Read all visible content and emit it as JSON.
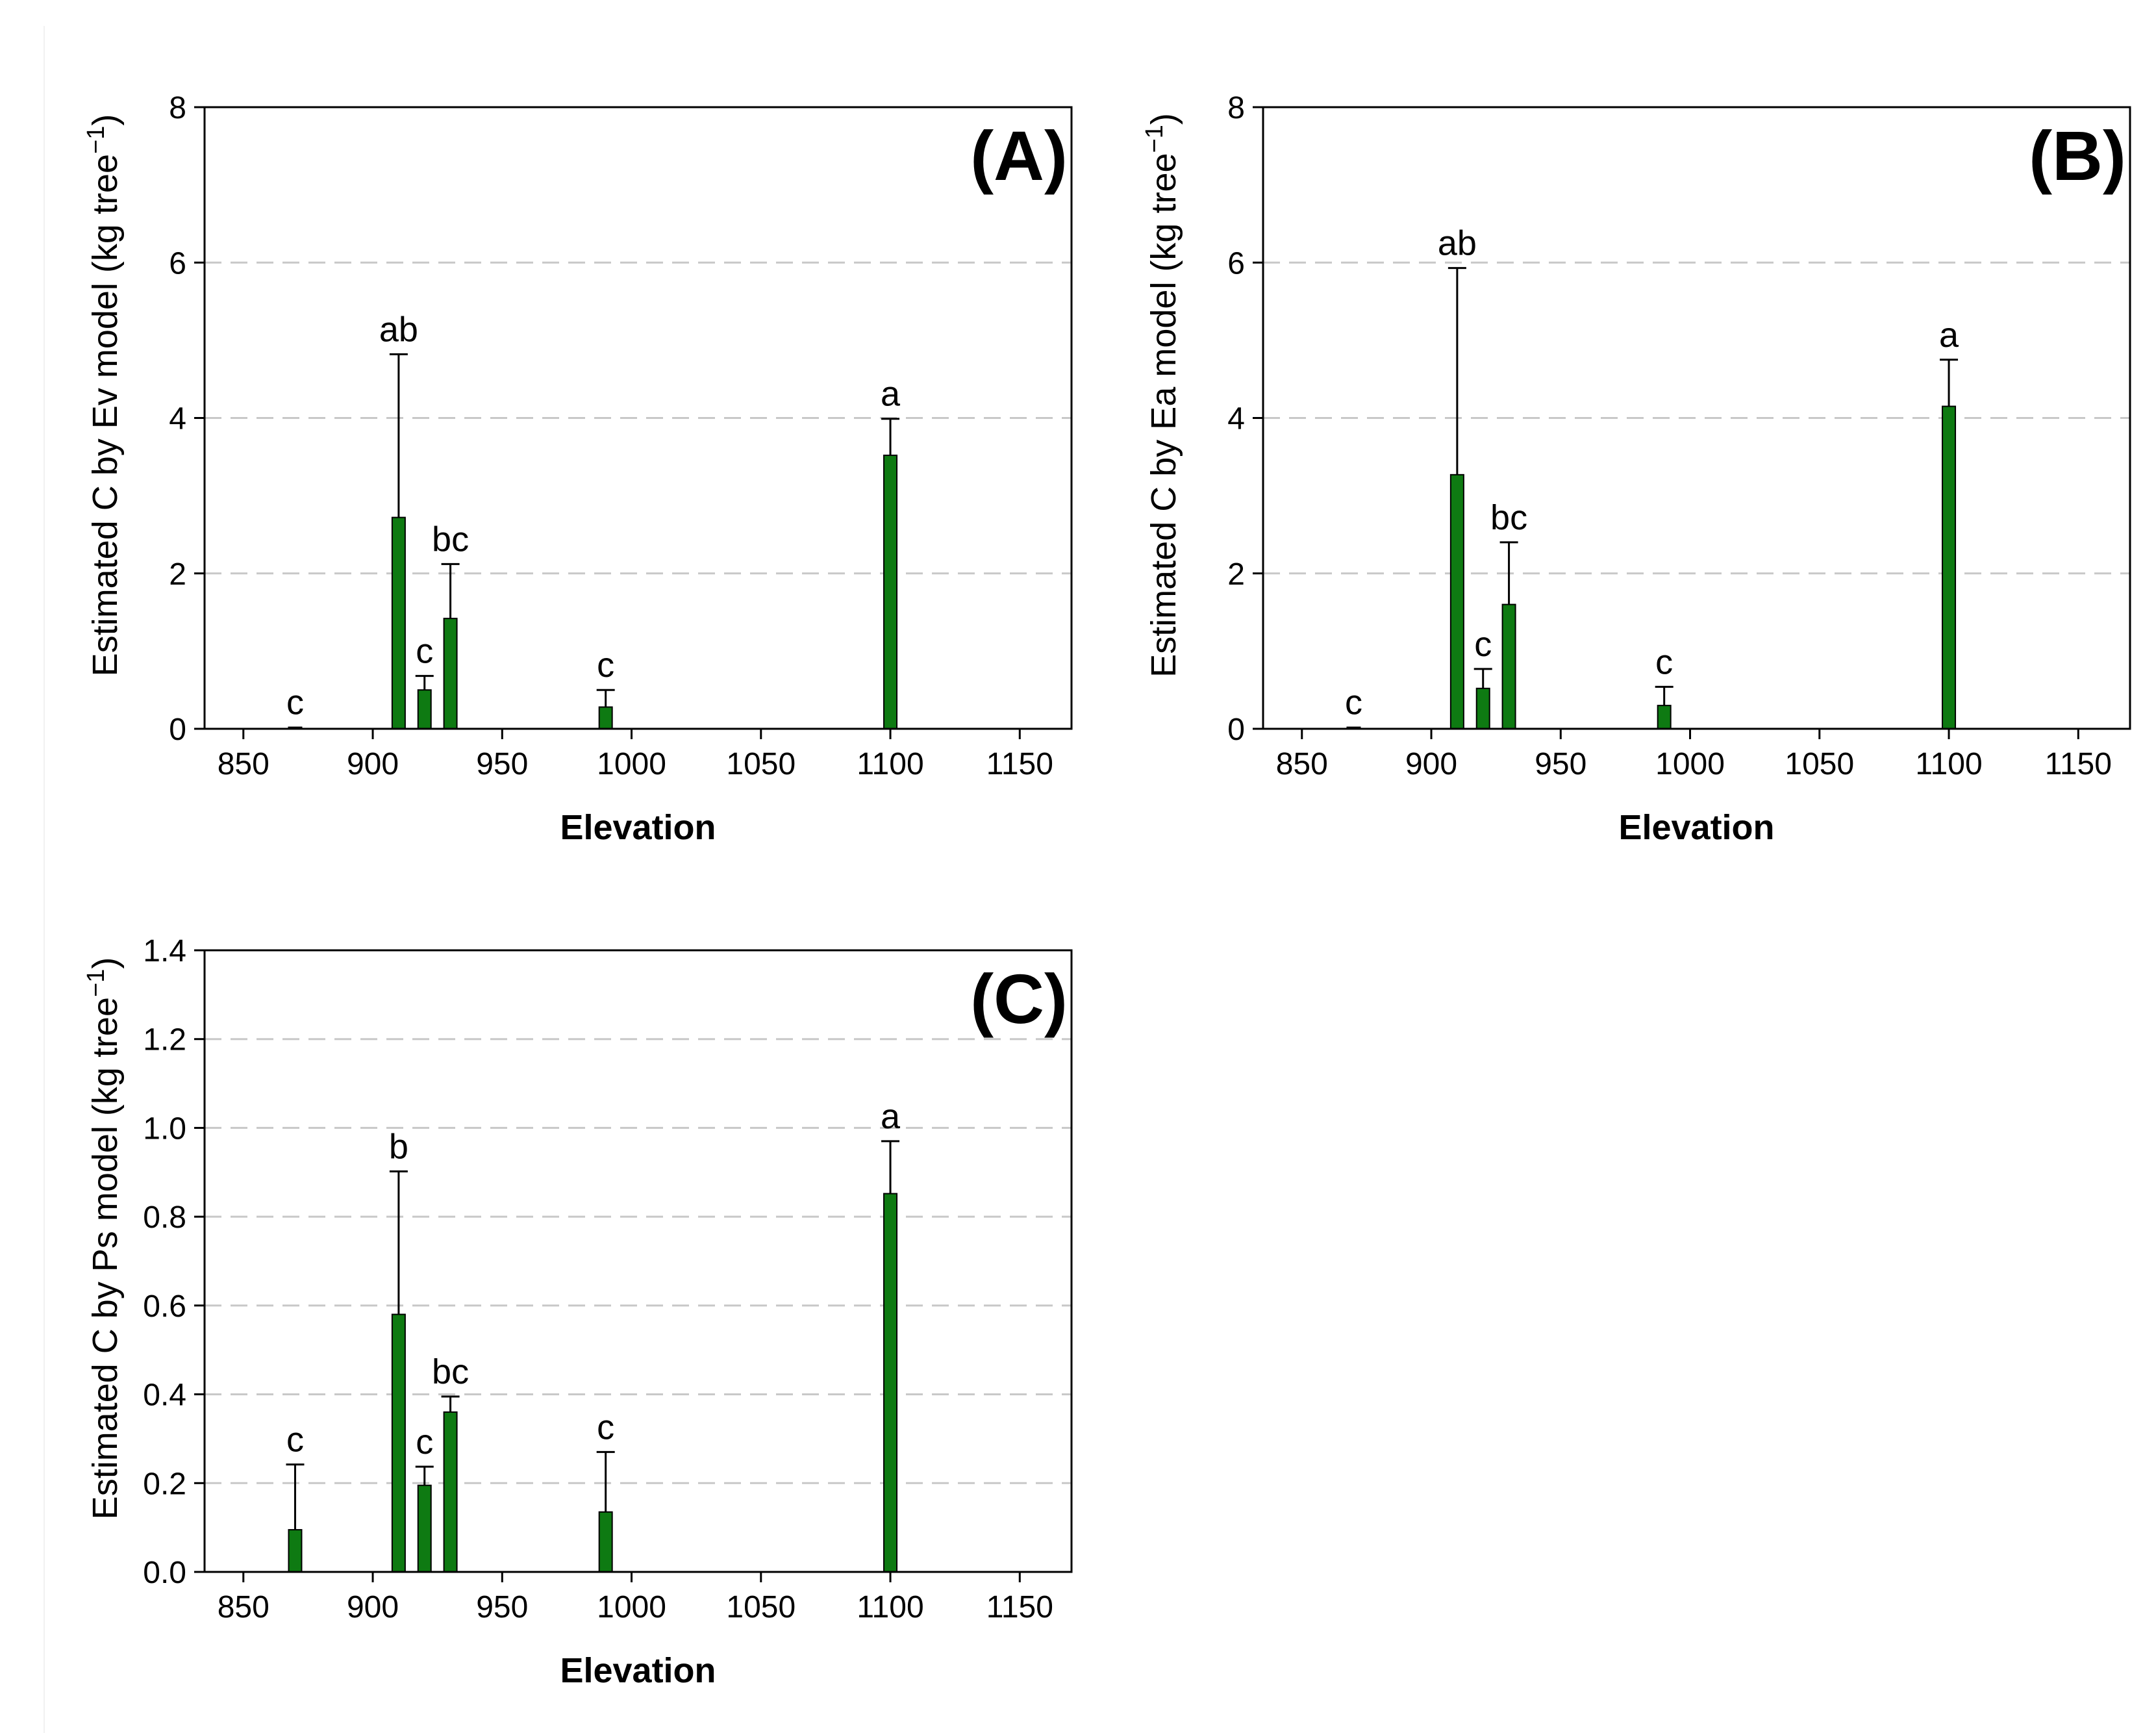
{
  "chart_data": [
    {
      "panel": "(A)",
      "type": "bar",
      "title": "",
      "xlabel": "Elevation",
      "ylabel": "Estimated C by Ev model (kg tree",
      "ylabel_unit_exponent": "−1",
      "ylabel_close": ")",
      "xlim": [
        835,
        1170
      ],
      "ylim": [
        0,
        8
      ],
      "xticks": [
        850,
        900,
        950,
        1000,
        1050,
        1100,
        1150
      ],
      "yticks": [
        0,
        2,
        4,
        6,
        8
      ],
      "ytick_labels": [
        "0",
        "2",
        "4",
        "6",
        "8"
      ],
      "grid": "dashed horizontal at 2, 4, 6",
      "bar_color": "#0e7a12",
      "x": [
        870,
        910,
        920,
        930,
        990,
        1100
      ],
      "values": [
        0.02,
        2.72,
        0.5,
        1.42,
        0.28,
        3.52
      ],
      "errors": [
        0,
        2.1,
        0.18,
        0.7,
        0.22,
        0.47
      ],
      "letters": [
        "c",
        "ab",
        "c",
        "bc",
        "c",
        "a"
      ]
    },
    {
      "panel": "(B)",
      "type": "bar",
      "title": "",
      "xlabel": "Elevation",
      "ylabel": "Estimated C by Ea model (kg tree",
      "ylabel_unit_exponent": "−1",
      "ylabel_close": ")",
      "xlim": [
        835,
        1170
      ],
      "ylim": [
        0,
        8
      ],
      "xticks": [
        850,
        900,
        950,
        1000,
        1050,
        1100,
        1150
      ],
      "yticks": [
        0,
        2,
        4,
        6,
        8
      ],
      "ytick_labels": [
        "0",
        "2",
        "4",
        "6",
        "8"
      ],
      "grid": "dashed horizontal at 2, 4, 6",
      "bar_color": "#0e7a12",
      "x": [
        870,
        910,
        920,
        930,
        990,
        1100
      ],
      "values": [
        0.02,
        3.27,
        0.52,
        1.6,
        0.3,
        4.15
      ],
      "errors": [
        0,
        2.66,
        0.25,
        0.8,
        0.24,
        0.6
      ],
      "letters": [
        "c",
        "ab",
        "c",
        "bc",
        "c",
        "a"
      ]
    },
    {
      "panel": "(C)",
      "type": "bar",
      "title": "",
      "xlabel": "Elevation",
      "ylabel": "Estimated C by Ps model (kg tree",
      "ylabel_unit_exponent": "−1",
      "ylabel_close": ")",
      "xlim": [
        835,
        1170
      ],
      "ylim": [
        0,
        1.4
      ],
      "xticks": [
        850,
        900,
        950,
        1000,
        1050,
        1100,
        1150
      ],
      "yticks": [
        0,
        0.2,
        0.4,
        0.6,
        0.8,
        1.0,
        1.2,
        1.4
      ],
      "ytick_labels": [
        "0.0",
        "0.2",
        "0.4",
        "0.6",
        "0.8",
        "1.0",
        "1.2",
        "1.4"
      ],
      "grid": "dashed horizontal at 0.2 intervals",
      "bar_color": "#0e7a12",
      "x": [
        870,
        910,
        920,
        930,
        990,
        1100
      ],
      "values": [
        0.095,
        0.58,
        0.195,
        0.36,
        0.135,
        0.852
      ],
      "errors": [
        0.147,
        0.322,
        0.042,
        0.035,
        0.135,
        0.118
      ],
      "letters": [
        "c",
        "b",
        "c",
        "bc",
        "c",
        "a"
      ]
    }
  ]
}
